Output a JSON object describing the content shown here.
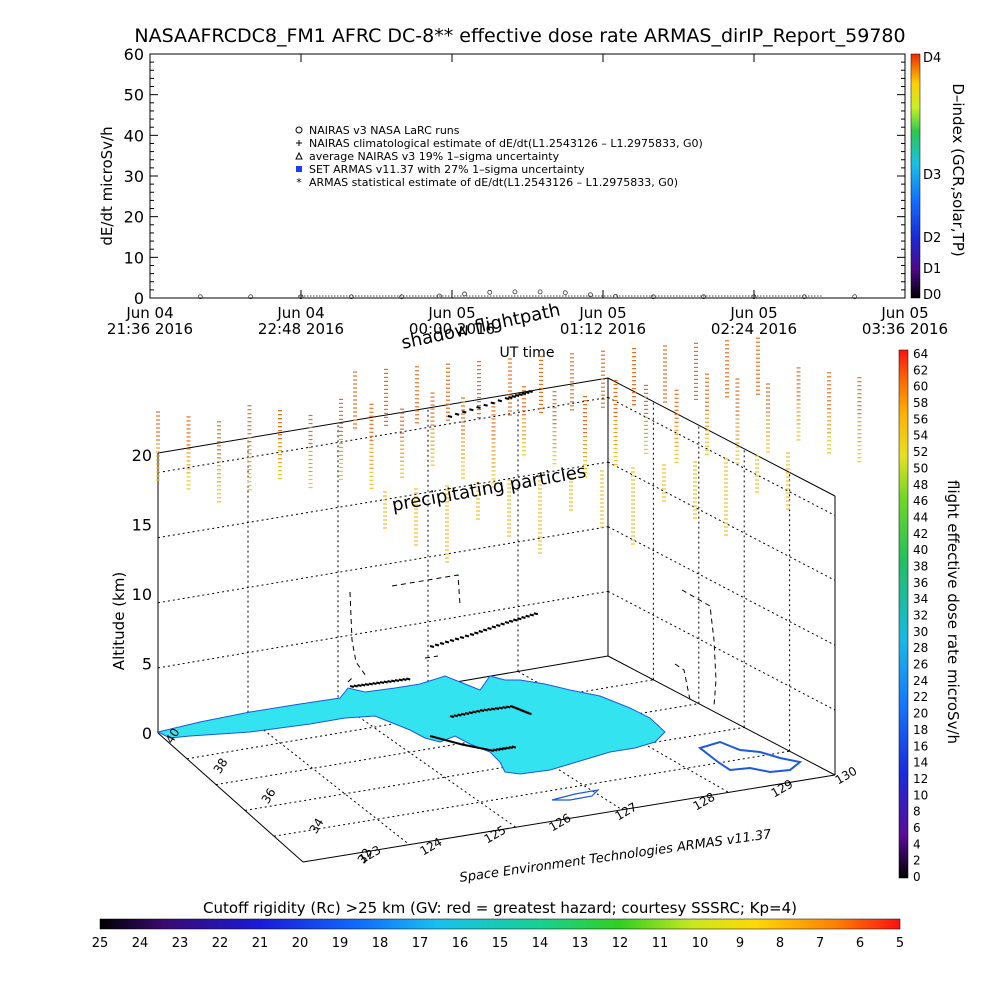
{
  "chart_data": [
    {
      "type": "scatter",
      "title": "NASAAFRCDC8_FM1 AFRC DC-8** effective dose rate ARMAS_dirIP_Report_59780",
      "ylabel": "dE/dt microSv/h",
      "xlabel": "UT time",
      "ylim": [
        0,
        60
      ],
      "y_ticks": [
        "0",
        "10",
        "20",
        "30",
        "40",
        "50",
        "60"
      ],
      "x_ticks": [
        {
          "line1": "Jun 04",
          "line2": "21:36 2016"
        },
        {
          "line1": "Jun 04",
          "line2": "22:48 2016"
        },
        {
          "line1": "Jun 05",
          "line2": "00:00 2016"
        },
        {
          "line1": "Jun 05",
          "line2": "01:12 2016"
        },
        {
          "line1": "Jun 05",
          "line2": "02:24 2016"
        },
        {
          "line1": "Jun 05",
          "line2": "03:36 2016"
        }
      ],
      "legend": [
        {
          "marker": "o",
          "text": "NAIRAS v3 NASA LaRC runs"
        },
        {
          "marker": "+",
          "text": "NAIRAS climatological estimate of dE/dt(L1.2543126 – L1.2975833, G0)"
        },
        {
          "marker": "triangle",
          "text": "average NAIRAS v3 19% 1–sigma uncertainty"
        },
        {
          "marker": "square-blue",
          "text": "SET ARMAS v11.37 with 27% 1–sigma uncertainty"
        },
        {
          "marker": "*",
          "text": "ARMAS statistical estimate of dE/dt(L1.2543126 – L1.2975833, G0)"
        }
      ],
      "series": [
        {
          "x_hours_since_jun04_2136": [
            0.4,
            0.8,
            1.2,
            1.6,
            2.0,
            2.3,
            2.5,
            2.7,
            2.9,
            3.1,
            3.3,
            3.5,
            3.7,
            4.0,
            4.4,
            4.8,
            5.2,
            5.6
          ],
          "values": [
            0.3,
            0.3,
            0.3,
            0.3,
            0.3,
            0.5,
            1.0,
            1.4,
            1.5,
            1.5,
            1.3,
            0.8,
            0.4,
            0.3,
            0.3,
            0.3,
            0.3,
            0.3
          ]
        }
      ],
      "d_index_colorbar": {
        "label": "D–index (GCR,solar,TP)",
        "ticks": [
          "D0",
          "D1",
          "D2",
          "D3",
          "D4"
        ]
      }
    },
    {
      "type": "heatmap",
      "zlabel": "Altitude (km)",
      "z_ticks": [
        "0",
        "5",
        "10",
        "15",
        "20"
      ],
      "lat_ticks": [
        "32",
        "34",
        "36",
        "38",
        "40"
      ],
      "lon_ticks": [
        "123",
        "124",
        "125",
        "126",
        "127",
        "128",
        "129",
        "130"
      ],
      "annotations": [
        "shadow flightpath",
        "precipitating particles"
      ],
      "credit": "Space Environment Technologies ARMAS v11.37",
      "dose_colorbar": {
        "label": "flight effective dose rate microSv/h",
        "ticks": [
          "0",
          "2",
          "4",
          "6",
          "8",
          "10",
          "12",
          "14",
          "16",
          "18",
          "20",
          "22",
          "24",
          "26",
          "28",
          "30",
          "32",
          "34",
          "36",
          "38",
          "40",
          "42",
          "44",
          "46",
          "48",
          "50",
          "52",
          "54",
          "56",
          "58",
          "60",
          "62",
          "64"
        ]
      },
      "rigidity_colorbar": {
        "label": "Cutoff rigidity (Rc) >25 km (GV: red = greatest hazard; courtesy SSSRC; Kp=4)",
        "ticks": [
          "25",
          "24",
          "23",
          "22",
          "21",
          "20",
          "19",
          "18",
          "17",
          "16",
          "15",
          "14",
          "13",
          "12",
          "11",
          "10",
          "9",
          "8",
          "7",
          "6",
          "5"
        ]
      }
    }
  ],
  "colors": {
    "cyan_rigidity_region": "#33e4f0",
    "coast_blue": "#1a5adf",
    "particles_orange": "#e87020",
    "particles_yellow": "#f0c020"
  }
}
